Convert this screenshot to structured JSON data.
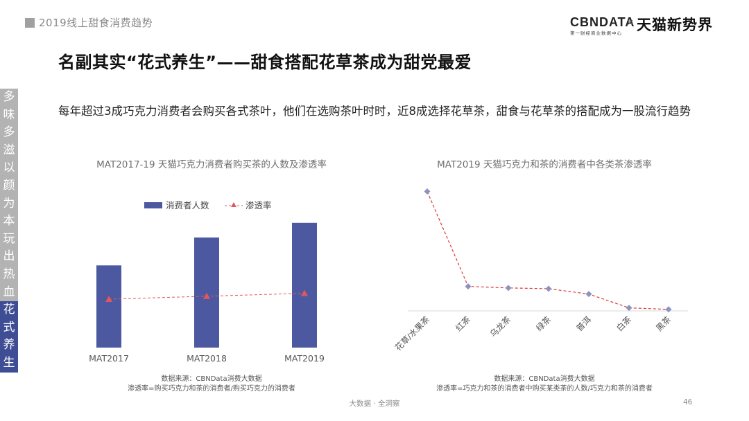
{
  "header": {
    "section": "2019线上甜食消费趋势",
    "brand_cbn": "CBNDATA",
    "brand_cbn_sub": "第一财经商业数据中心",
    "brand_x": "×",
    "brand_tmall": "天猫新势界"
  },
  "slide": {
    "title": "名副其实“花式养生”——甜食搭配花草茶成为甜党最爱",
    "subtitle": "每年超过3成巧克力消费者会购买各式茶叶，他们在选购茶叶时时，近8成选择花草茶，甜食与花草茶的搭配成为一股流行趋势"
  },
  "side_nav": [
    {
      "chars": [
        "多",
        "味",
        "多",
        "滋"
      ],
      "active": false
    },
    {
      "chars": [
        "以",
        "颜",
        "为",
        "本"
      ],
      "active": false
    },
    {
      "chars": [
        "玩",
        "出",
        "热",
        "血"
      ],
      "active": false
    },
    {
      "chars": [
        "花",
        "式",
        "养",
        "生"
      ],
      "active": true
    }
  ],
  "chart_data": [
    {
      "type": "bar",
      "title": "MAT2017-19 天猫巧克力消费者购买茶的人数及渗透率",
      "categories": [
        "MAT2017",
        "MAT2018",
        "MAT2019"
      ],
      "series": [
        {
          "name": "消费者人数",
          "type": "bar",
          "color": "#4c59a1",
          "values": [
            0.56,
            0.75,
            0.85
          ]
        },
        {
          "name": "渗透率",
          "type": "line",
          "color": "#e0585b",
          "values": [
            0.33,
            0.35,
            0.37
          ]
        }
      ],
      "ylim": [
        0,
        1
      ],
      "xlabel": "",
      "ylabel": "",
      "legend_position": "top",
      "grid": false,
      "source": "数据来源：CBNData消费大数据",
      "note": "渗透率=购买巧克力和茶的消费者/购买巧克力的消费者"
    },
    {
      "type": "line",
      "title": "MAT2019 天猫巧克力和茶的消费者中各类茶渗透率",
      "categories": [
        "花草/水果茶",
        "红茶",
        "乌龙茶",
        "绿茶",
        "普洱",
        "白茶",
        "黑茶"
      ],
      "series": [
        {
          "name": "",
          "color": "#d93a35",
          "marker_color": "#8e93bd",
          "values": [
            0.78,
            0.16,
            0.15,
            0.145,
            0.11,
            0.02,
            0.01
          ]
        }
      ],
      "ylim": [
        0,
        0.9
      ],
      "xlabel": "",
      "ylabel": "",
      "grid": false,
      "source": "数据来源：CBNData消费大数据",
      "note": "渗透率=巧克力和茶的消费者中购买某类茶的人数/巧克力和茶的消费者"
    }
  ],
  "footer": {
    "text": "大数据 · 全洞察",
    "page": "46"
  }
}
